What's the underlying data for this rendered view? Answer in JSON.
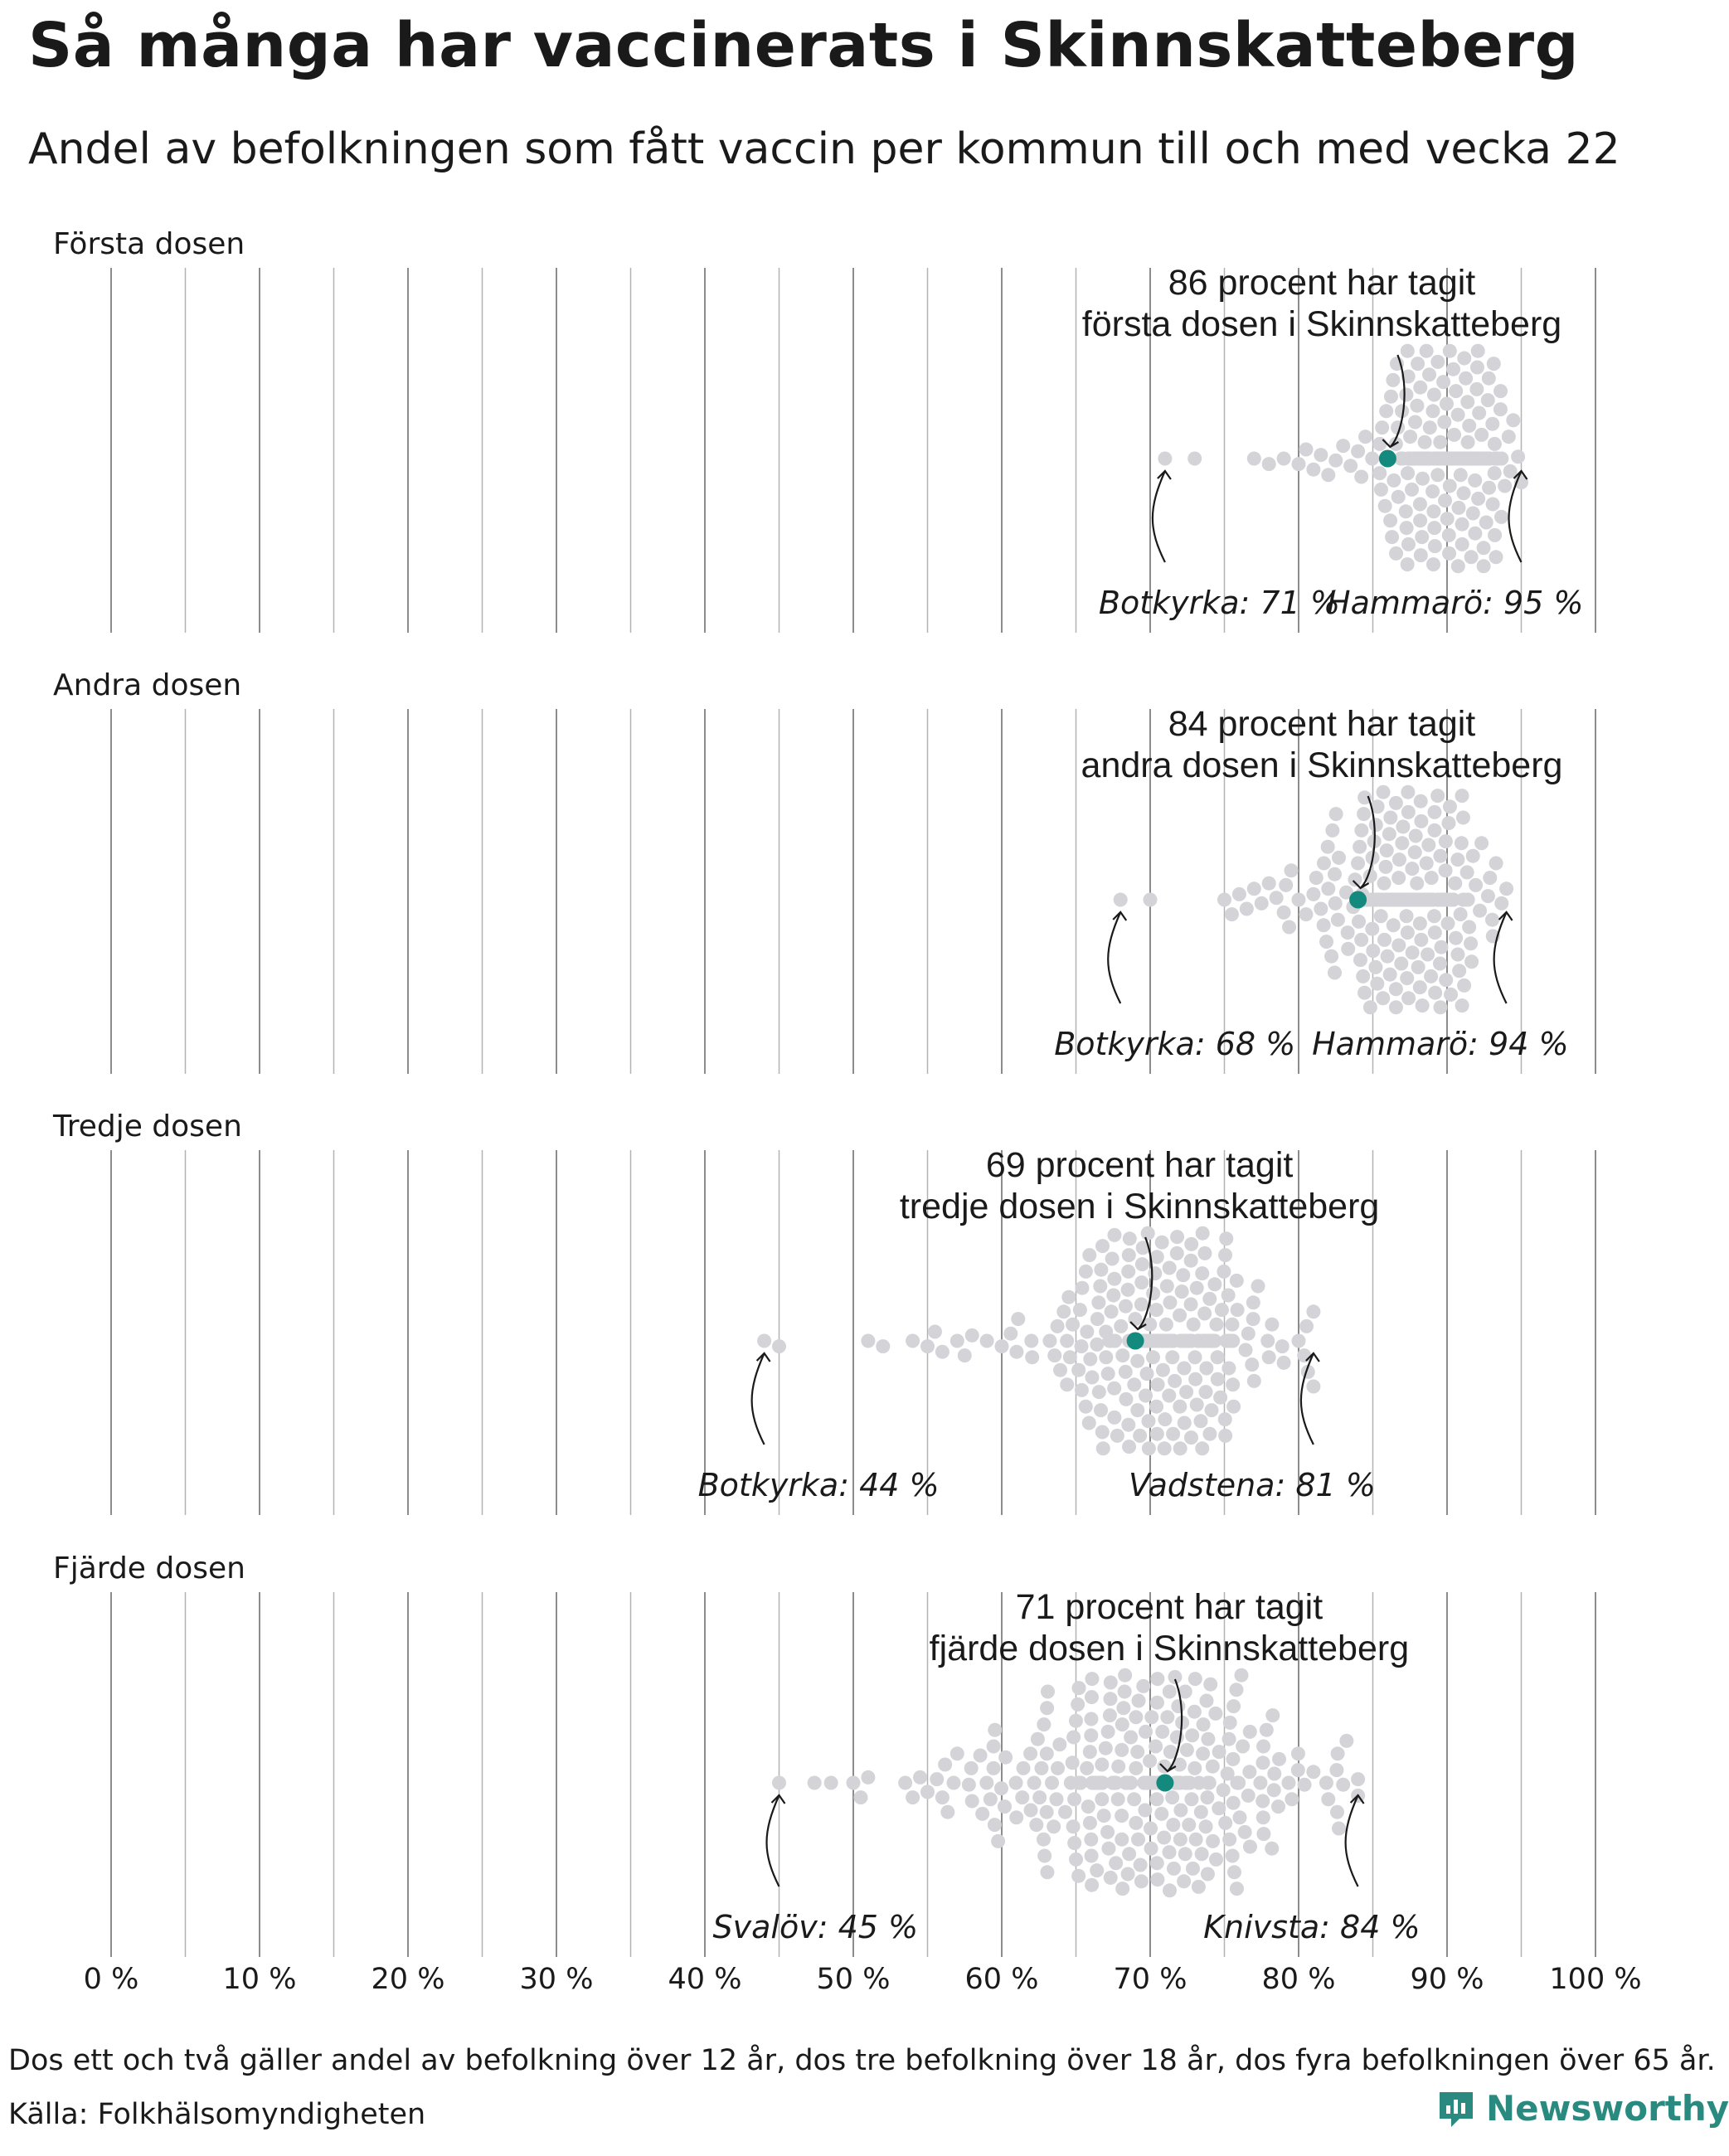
{
  "title": "Så många har vaccinerats i Skinnskatteberg",
  "subtitle": "Andel av befolkningen som fått vaccin per kommun till och med vecka 22",
  "footnote": "Dos ett och två gäller andel av befolkning över 12 år, dos tre befolkning över 18 år, dos fyra befolkningen över 65 år.",
  "source": "Källa: Folkhälsomyndigheten",
  "brand": "Newsworthy",
  "colors": {
    "highlight": "#138a7d",
    "dots": "#d3d3d8",
    "grid": "#8c8c8c",
    "brand": "#2a8a80"
  },
  "icons": [
    "newsworthy-logo-icon"
  ],
  "chart_data": {
    "type": "scatter",
    "subtype": "beeswarm",
    "x_axis": {
      "range": [
        0,
        100
      ],
      "ticks": [
        0,
        10,
        20,
        30,
        40,
        50,
        60,
        70,
        80,
        90,
        100
      ],
      "tick_labels": [
        "0 %",
        "10 %",
        "20 %",
        "30 %",
        "40 %",
        "50 %",
        "60 %",
        "70 %",
        "80 %",
        "90 %",
        "100 %"
      ],
      "unit": "%"
    },
    "grid": true,
    "highlight_municipality": "Skinnskatteberg",
    "panels": [
      {
        "label": "Första dosen",
        "highlight_value": 86,
        "highlight_text": [
          "86 procent har tagit",
          "första dosen i Skinnskatteberg"
        ],
        "min": {
          "name": "Botkyrka",
          "value": 71,
          "label": "Botkyrka: 71 %"
        },
        "max": {
          "name": "Hammarö",
          "value": 95,
          "label": "Hammarö: 95 %"
        },
        "distribution": {
          "center": 90,
          "sd": 2.2,
          "count": 290
        },
        "sparse_values": [
          71,
          73,
          77,
          78,
          79,
          80,
          80.5,
          81,
          81.5,
          82,
          82.5,
          83,
          83.5,
          84,
          84.5
        ]
      },
      {
        "label": "Andra dosen",
        "highlight_value": 84,
        "highlight_text": [
          "84 procent har tagit",
          "andra dosen i Skinnskatteberg"
        ],
        "min": {
          "name": "Botkyrka",
          "value": 68,
          "label": "Botkyrka: 68 %"
        },
        "max": {
          "name": "Hammarö",
          "value": 94,
          "label": "Hammarö: 94 %"
        },
        "distribution": {
          "center": 87.5,
          "sd": 2.4,
          "count": 290
        },
        "sparse_values": [
          68,
          70,
          75,
          75.5,
          76,
          76.5,
          77,
          77.5,
          78,
          78.5,
          79,
          79.5,
          80,
          80.5,
          81,
          81.5,
          82
        ]
      },
      {
        "label": "Tredje dosen",
        "highlight_value": 69,
        "highlight_text": [
          "69 procent har tagit",
          "tredje dosen i Skinnskatteberg"
        ],
        "min": {
          "name": "Botkyrka",
          "value": 44,
          "label": "Botkyrka: 44 %"
        },
        "max": {
          "name": "Vadstena",
          "value": 81,
          "label": "Vadstena: 81 %"
        },
        "distribution": {
          "center": 70.5,
          "sd": 3.3,
          "count": 270
        },
        "sparse_values": [
          44,
          45,
          51,
          52,
          54,
          55,
          55.5,
          56,
          57,
          57.5,
          58,
          59,
          60,
          61,
          62,
          77,
          78,
          79,
          80,
          81
        ]
      },
      {
        "label": "Fjärde dosen",
        "highlight_value": 71,
        "highlight_text": [
          "71 procent har tagit",
          "fjärde dosen i Skinnskatteberg"
        ],
        "min": {
          "name": "Svalöv",
          "value": 45,
          "label": "Svalöv: 45 %"
        },
        "max": {
          "name": "Knivsta",
          "value": 84,
          "label": "Knivsta: 84 %"
        },
        "distribution": {
          "center": 69.5,
          "sd": 5.5,
          "count": 270
        },
        "sparse_values": [
          45,
          48.5,
          50,
          50.5,
          51,
          53.5,
          54,
          54.5,
          55,
          56,
          57,
          58,
          81,
          82,
          83,
          84
        ]
      }
    ]
  }
}
